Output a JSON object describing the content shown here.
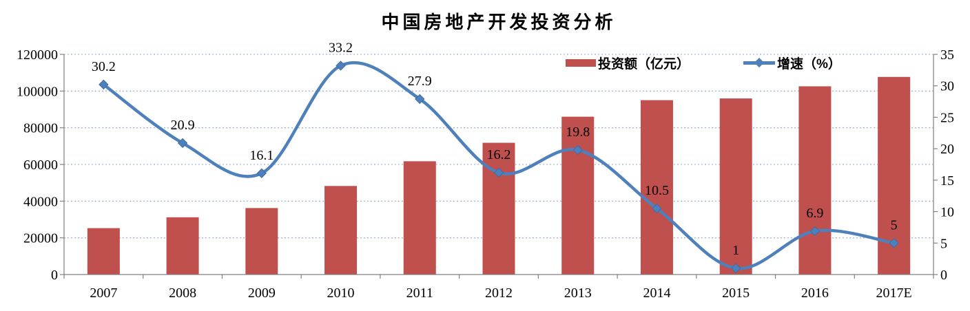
{
  "title": "中国房地产开发投资分析",
  "chart_data": {
    "type": "bar+line combo (dual axis)",
    "categories": [
      "2007",
      "2008",
      "2009",
      "2010",
      "2011",
      "2012",
      "2013",
      "2014",
      "2015",
      "2016",
      "2017E"
    ],
    "series": [
      {
        "name": "投资额（亿元）",
        "type": "bar",
        "axis": "left",
        "color": "#C0504D",
        "values": [
          25289,
          31203,
          36232,
          48267,
          61740,
          71804,
          86013,
          95036,
          95979,
          102581,
          107710
        ]
      },
      {
        "name": "增速（%）",
        "type": "line",
        "axis": "right",
        "color": "#4E80BC",
        "values": [
          30.2,
          20.9,
          16.1,
          33.2,
          27.9,
          16.2,
          19.8,
          10.5,
          1,
          6.9,
          5
        ],
        "point_labels": [
          "30.2",
          "20.9",
          "16.1",
          "33.2",
          "27.9",
          "16.2",
          "19.8",
          "10.5",
          "1",
          "6.9",
          "5"
        ]
      }
    ],
    "left_axis": {
      "min": 0,
      "max": 120000,
      "step": 20000,
      "tick_labels": [
        "120000",
        "100000",
        "80000",
        "60000",
        "40000",
        "20000",
        "0"
      ]
    },
    "right_axis": {
      "min": 0,
      "max": 35,
      "step": 5,
      "tick_labels": [
        "35",
        "30",
        "25",
        "20",
        "15",
        "10",
        "5",
        "0"
      ]
    },
    "grid": {
      "horizontal": "dotted",
      "color": "#A5B8D9"
    },
    "legend_position": "top-right-inside",
    "line_smooth": true
  },
  "colors": {
    "bar": "#C0504D",
    "line": "#4E80BC",
    "gridline": "#A5B8D9",
    "axis": "#808080",
    "text": "#000000",
    "background": "#FFFFFF"
  }
}
